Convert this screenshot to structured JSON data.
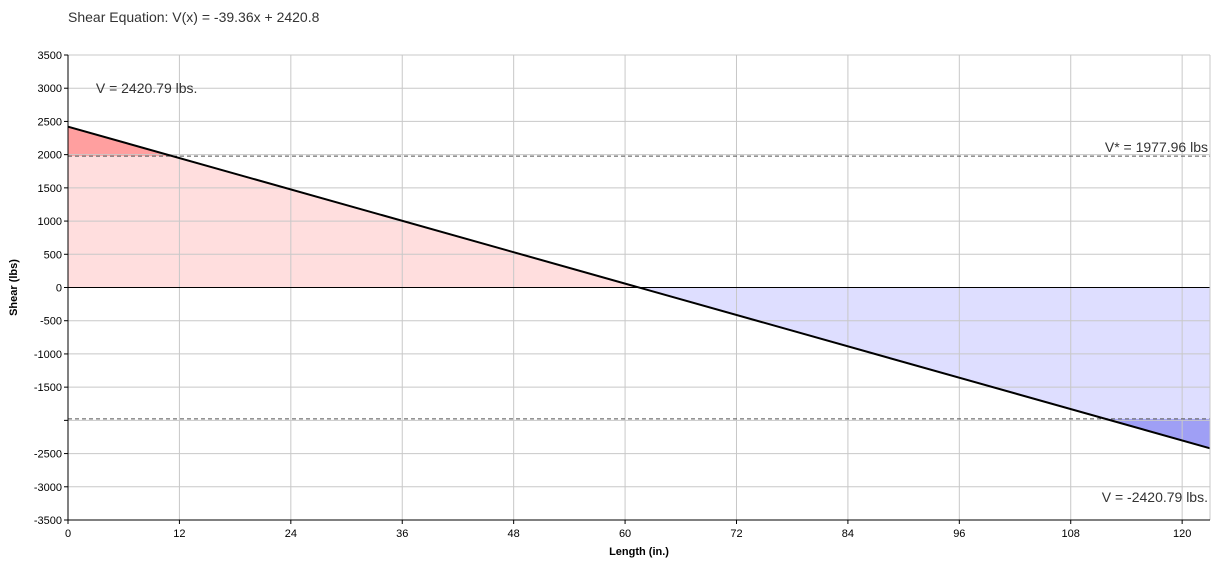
{
  "chart_data": {
    "type": "area",
    "title": "Shear Equation:  V(x) = -39.36x + 2420.8",
    "xlabel": "Length (in.)",
    "ylabel": "Shear (lbs)",
    "xlim": [
      0,
      123
    ],
    "ylim": [
      -3500,
      3500
    ],
    "x_ticks": [
      0,
      12,
      24,
      36,
      48,
      60,
      72,
      84,
      96,
      108,
      120
    ],
    "y_ticks": [
      3500,
      3000,
      2500,
      2000,
      1500,
      1000,
      500,
      0,
      -500,
      -1000,
      -1500,
      -2000,
      -2500,
      -3000,
      -3500
    ],
    "y_tick_labels": [
      "3500",
      "3000",
      "2500",
      "2000",
      "1500",
      "1000",
      "500",
      "0",
      "-500",
      "-1000",
      "-1500",
      "",
      "-2500",
      "-3000",
      "-3500"
    ],
    "grid": true,
    "series": [
      {
        "x": [
          0,
          123
        ],
        "y": [
          2420.79,
          -2420.79
        ],
        "color": "#000000"
      }
    ],
    "reference_lines": [
      {
        "y": 1977.96,
        "style": "dashed",
        "color": "#555555"
      },
      {
        "y": -1977.96,
        "style": "dashed",
        "color": "#555555"
      }
    ],
    "fills": {
      "positive_light": "#ffdede",
      "positive_dark": "#ff9f9f",
      "negative_light": "#dedeff",
      "negative_dark": "#9f9ff5"
    },
    "annotations": [
      {
        "text": "V = 2420.79 lbs.",
        "x": 3,
        "y": 3000
      },
      {
        "text": "V* = 1977.96 lbs",
        "x": 123,
        "y": 1977.96
      },
      {
        "text": "V = -2420.79 lbs.",
        "x": 123,
        "y": -3150
      }
    ]
  }
}
